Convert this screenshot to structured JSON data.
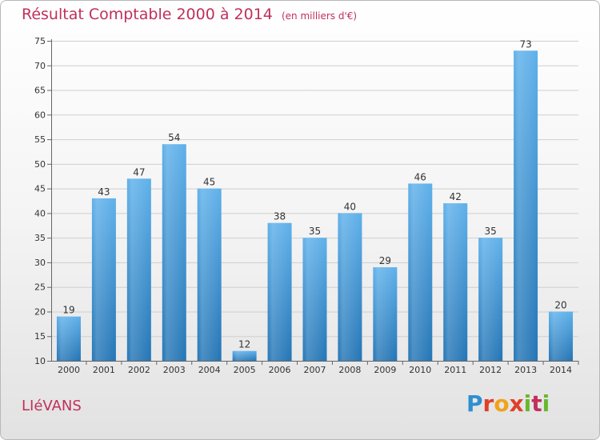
{
  "header": {
    "title": "Résultat Comptable 2000 à 2014",
    "subtitle": "(en milliers d'€)"
  },
  "footer": {
    "commune": "LIéVANS",
    "logo_text": "Proxiti"
  },
  "colors": {
    "title": "#c0305a",
    "bar_light": "#5eb0ea",
    "bar_dark": "#2475b5",
    "grid": "#cfcfcf"
  },
  "chart_data": {
    "type": "bar",
    "title": "Résultat Comptable 2000 à 2014",
    "subtitle": "(en milliers d'€)",
    "xlabel": "",
    "ylabel": "",
    "categories": [
      "2000",
      "2001",
      "2002",
      "2003",
      "2004",
      "2005",
      "2006",
      "2007",
      "2008",
      "2009",
      "2010",
      "2011",
      "2012",
      "2013",
      "2014"
    ],
    "values": [
      19,
      43,
      47,
      54,
      45,
      12,
      38,
      35,
      40,
      29,
      46,
      42,
      35,
      73,
      20
    ],
    "ylim": [
      10,
      75
    ],
    "yticks": [
      10,
      15,
      20,
      25,
      30,
      35,
      40,
      45,
      50,
      55,
      60,
      65,
      70,
      75
    ],
    "grid": true,
    "data_labels": true
  }
}
